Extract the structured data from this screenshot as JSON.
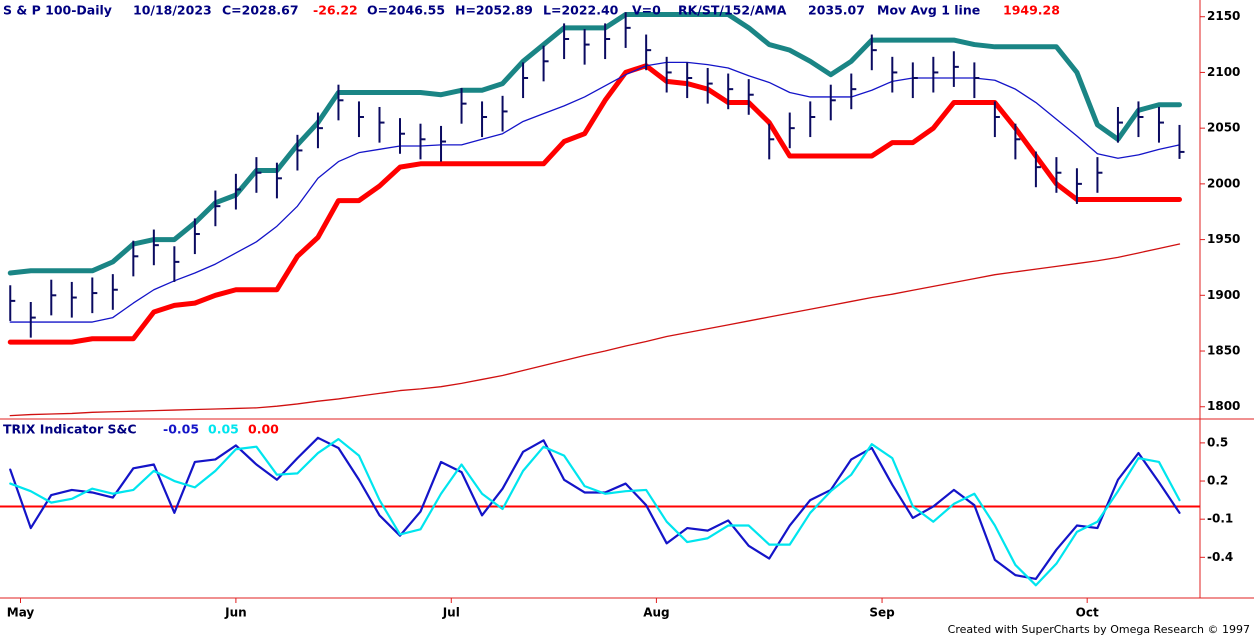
{
  "chart_data": [
    {
      "type": "ohlc",
      "header": [
        {
          "text": "S & P 100-Daily",
          "color": "#000080"
        },
        {
          "text": "10/18/2023",
          "color": "#000080"
        },
        {
          "text": "C=2028.67",
          "color": "#000080"
        },
        {
          "text": "-26.22",
          "color": "#ff0000"
        },
        {
          "text": "O=2046.55",
          "color": "#000080"
        },
        {
          "text": "H=2052.89",
          "color": "#000080"
        },
        {
          "text": "L=2022.40",
          "color": "#000080"
        },
        {
          "text": "V=0",
          "color": "#000080"
        },
        {
          "text": "RK/ST/152/AMA",
          "color": "#000080"
        },
        {
          "text": "2035.07",
          "color": "#000080"
        },
        {
          "text": "Mov Avg 1 line",
          "color": "#000080"
        },
        {
          "text": "1949.28",
          "color": "#ff0000"
        }
      ],
      "x": [
        0,
        2,
        4,
        6,
        8,
        10,
        12,
        14,
        16,
        18,
        20,
        22,
        24,
        26,
        28,
        30,
        32,
        34,
        36,
        38,
        40,
        42,
        44,
        46,
        48,
        50,
        52,
        54,
        56,
        58,
        60,
        62,
        64,
        66,
        68,
        70,
        72,
        74,
        76,
        78,
        80,
        82,
        84,
        86,
        88,
        90,
        92,
        94,
        96,
        98,
        100,
        102,
        104,
        106,
        108,
        110,
        112,
        114
      ],
      "xlim": [
        -1,
        116
      ],
      "ylim": [
        1789,
        2165
      ],
      "yticks": [
        1800,
        1850,
        1900,
        1950,
        2000,
        2050,
        2100,
        2150
      ],
      "bar_color": "#0a0a60",
      "high": [
        1909,
        1894,
        1914,
        1912,
        1916,
        1919,
        1949,
        1959,
        1944,
        1969,
        1994,
        2009,
        2024,
        2019,
        2044,
        2064,
        2089,
        2074,
        2069,
        2059,
        2054,
        2052,
        2086,
        2074,
        2079,
        2109,
        2124,
        2144,
        2139,
        2144,
        2154,
        2134,
        2114,
        2109,
        2104,
        2099,
        2094,
        2054,
        2064,
        2074,
        2089,
        2099,
        2134,
        2114,
        2109,
        2114,
        2119,
        2109,
        2074,
        2054,
        2029,
        2024,
        2014,
        2024,
        2069,
        2074,
        2069,
        2052.89
      ],
      "low": [
        1877,
        1862,
        1882,
        1880,
        1884,
        1887,
        1917,
        1927,
        1912,
        1937,
        1962,
        1977,
        1992,
        1987,
        2012,
        2032,
        2057,
        2042,
        2037,
        2027,
        2022,
        2020,
        2054,
        2042,
        2047,
        2077,
        2092,
        2112,
        2107,
        2112,
        2122,
        2102,
        2082,
        2077,
        2072,
        2067,
        2062,
        2022,
        2032,
        2042,
        2057,
        2067,
        2102,
        2082,
        2077,
        2082,
        2087,
        2077,
        2042,
        2022,
        1997,
        1992,
        1982,
        1992,
        2037,
        2042,
        2037,
        2022.4
      ],
      "close": [
        1895,
        1880,
        1900,
        1898,
        1902,
        1905,
        1935,
        1945,
        1930,
        1955,
        1980,
        1995,
        2010,
        2005,
        2030,
        2050,
        2075,
        2060,
        2055,
        2045,
        2040,
        2038,
        2072,
        2060,
        2065,
        2095,
        2110,
        2130,
        2125,
        2130,
        2140,
        2120,
        2100,
        2095,
        2090,
        2085,
        2080,
        2040,
        2050,
        2060,
        2075,
        2085,
        2120,
        2100,
        2095,
        2100,
        2105,
        2095,
        2060,
        2040,
        2015,
        2010,
        2000,
        2010,
        2055,
        2060,
        2055,
        2028.67
      ],
      "series": [
        {
          "color": "#1a8585",
          "width": 5,
          "values": [
            1920,
            1922,
            1922,
            1922,
            1922,
            1930,
            1946,
            1950,
            1950,
            1965,
            1983,
            1990,
            2012,
            2012,
            2035,
            2055,
            2082,
            2082,
            2082,
            2082,
            2082,
            2080,
            2084,
            2084,
            2090,
            2110,
            2125,
            2140,
            2140,
            2140,
            2152,
            2152,
            2152,
            2152,
            2152,
            2152,
            2140,
            2125,
            2120,
            2110,
            2098,
            2110,
            2129,
            2129,
            2129,
            2129,
            2129,
            2125,
            2123,
            2123,
            2123,
            2123,
            2100,
            2053,
            2040,
            2066,
            2071,
            2071
          ]
        },
        {
          "color": "#ff0000",
          "width": 5,
          "values": [
            1858,
            1858,
            1858,
            1858,
            1861,
            1861,
            1861,
            1885,
            1891,
            1893,
            1900,
            1905,
            1905,
            1905,
            1935,
            1952,
            1985,
            1985,
            1998,
            2015,
            2018,
            2018,
            2018,
            2018,
            2018,
            2018,
            2018,
            2038,
            2045,
            2075,
            2100,
            2106,
            2092,
            2090,
            2085,
            2073,
            2073,
            2055,
            2025,
            2025,
            2025,
            2025,
            2025,
            2037,
            2037,
            2050,
            2073,
            2073,
            2073,
            2050,
            2025,
            2000,
            1986,
            1986,
            1986,
            1986,
            1986,
            1986
          ]
        },
        {
          "color": "#1414c8",
          "width": 1.3,
          "values": [
            1876,
            1876,
            1876,
            1876,
            1876,
            1880,
            1893,
            1905,
            1913,
            1920,
            1928,
            1938,
            1948,
            1962,
            1980,
            2005,
            2020,
            2028,
            2031,
            2034,
            2034,
            2035,
            2035,
            2040,
            2045,
            2056,
            2063,
            2070,
            2078,
            2088,
            2098,
            2106,
            2109,
            2109,
            2107,
            2104,
            2097,
            2091,
            2082,
            2078,
            2078,
            2078,
            2084,
            2092,
            2095,
            2095,
            2095,
            2095,
            2093,
            2085,
            2073,
            2058,
            2043,
            2027,
            2023,
            2026,
            2031,
            2035
          ]
        },
        {
          "color": "#d01010",
          "width": 1.3,
          "values": [
            1792,
            1793,
            1793.5,
            1794,
            1795,
            1795.5,
            1796,
            1796.5,
            1797,
            1797.5,
            1798,
            1798.5,
            1799,
            1800.5,
            1802.5,
            1805,
            1807,
            1809.5,
            1812,
            1814.5,
            1816,
            1818,
            1821,
            1824.5,
            1828,
            1832.5,
            1837,
            1841.5,
            1846,
            1850,
            1854.5,
            1858.5,
            1863,
            1866.5,
            1870,
            1873.5,
            1877,
            1880.5,
            1884,
            1887.5,
            1891,
            1894.5,
            1898,
            1901,
            1904.5,
            1908,
            1911.5,
            1915,
            1918.5,
            1921,
            1923.5,
            1926,
            1928.5,
            1931,
            1934,
            1938,
            1942,
            1946
          ]
        }
      ]
    },
    {
      "type": "line",
      "header": [
        {
          "text": "TRIX Indicator S&C",
          "color": "#000080"
        },
        {
          "text": "-0.05",
          "color": "#1414c8"
        },
        {
          "text": "0.05",
          "color": "#00e5ee"
        },
        {
          "text": "0.00",
          "color": "#ff0000"
        }
      ],
      "x": [
        0,
        2,
        4,
        6,
        8,
        10,
        12,
        14,
        16,
        18,
        20,
        22,
        24,
        26,
        28,
        30,
        32,
        34,
        36,
        38,
        40,
        42,
        44,
        46,
        48,
        50,
        52,
        54,
        56,
        58,
        60,
        62,
        64,
        66,
        68,
        70,
        72,
        74,
        76,
        78,
        80,
        82,
        84,
        86,
        88,
        90,
        92,
        94,
        96,
        98,
        100,
        102,
        104,
        106,
        108,
        110,
        112,
        114
      ],
      "xlim": [
        -1,
        116
      ],
      "xticks": [
        {
          "value": 1,
          "label": "May"
        },
        {
          "value": 22,
          "label": "Jun"
        },
        {
          "value": 43,
          "label": "Jul"
        },
        {
          "value": 63,
          "label": "Aug"
        },
        {
          "value": 85,
          "label": "Sep"
        },
        {
          "value": 105,
          "label": "Oct"
        }
      ],
      "ylim": [
        -0.72,
        0.68
      ],
      "yticks": [
        -0.4,
        -0.1,
        0.2,
        0.5
      ],
      "reference_line": {
        "value": 0,
        "color": "#ff0000"
      },
      "series": [
        {
          "color": "#1414c8",
          "values": [
            0.29,
            -0.17,
            0.09,
            0.13,
            0.11,
            0.07,
            0.3,
            0.33,
            -0.05,
            0.35,
            0.37,
            0.48,
            0.33,
            0.21,
            0.38,
            0.54,
            0.46,
            0.21,
            -0.07,
            -0.23,
            -0.04,
            0.35,
            0.27,
            -0.07,
            0.14,
            0.43,
            0.52,
            0.21,
            0.11,
            0.11,
            0.18,
            0.01,
            -0.29,
            -0.17,
            -0.19,
            -0.11,
            -0.31,
            -0.41,
            -0.15,
            0.05,
            0.13,
            0.37,
            0.46,
            0.17,
            -0.09,
            0.0,
            0.13,
            0.01,
            -0.42,
            -0.54,
            -0.57,
            -0.34,
            -0.15,
            -0.17,
            0.21,
            0.42,
            0.19,
            -0.05
          ]
        },
        {
          "color": "#00e5ee",
          "values": [
            0.18,
            0.12,
            0.03,
            0.06,
            0.14,
            0.1,
            0.13,
            0.28,
            0.2,
            0.15,
            0.28,
            0.45,
            0.47,
            0.25,
            0.26,
            0.42,
            0.53,
            0.4,
            0.05,
            -0.22,
            -0.18,
            0.1,
            0.33,
            0.1,
            -0.02,
            0.28,
            0.47,
            0.4,
            0.16,
            0.1,
            0.12,
            0.13,
            -0.12,
            -0.28,
            -0.25,
            -0.15,
            -0.15,
            -0.3,
            -0.3,
            -0.05,
            0.12,
            0.25,
            0.49,
            0.38,
            0.0,
            -0.12,
            0.02,
            0.1,
            -0.15,
            -0.46,
            -0.62,
            -0.45,
            -0.2,
            -0.12,
            0.12,
            0.38,
            0.35,
            0.05
          ]
        }
      ]
    }
  ],
  "footer": "Created with SuperCharts by Omega Research © 1997"
}
